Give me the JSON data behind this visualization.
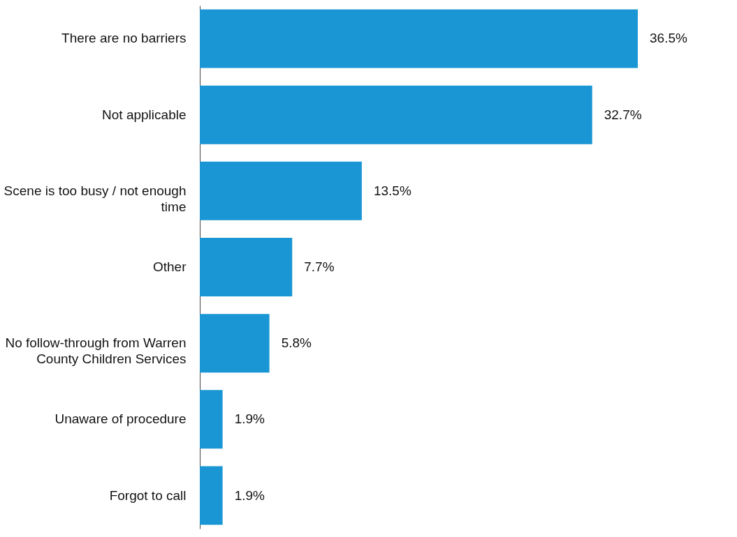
{
  "chart_data": {
    "type": "bar",
    "orientation": "horizontal",
    "categories": [
      "There are no barriers",
      "Not applicable",
      "Scene is too busy / not enough time",
      "Other",
      "No follow-through from Warren County Children Services",
      "Unaware of procedure",
      "Forgot to call"
    ],
    "values": [
      36.5,
      32.7,
      13.5,
      7.7,
      5.8,
      1.9,
      1.9
    ],
    "value_labels": [
      "36.5%",
      "32.7%",
      "13.5%",
      "7.7%",
      "5.8%",
      "1.9%",
      "1.9%"
    ],
    "color": "#1996d3"
  }
}
